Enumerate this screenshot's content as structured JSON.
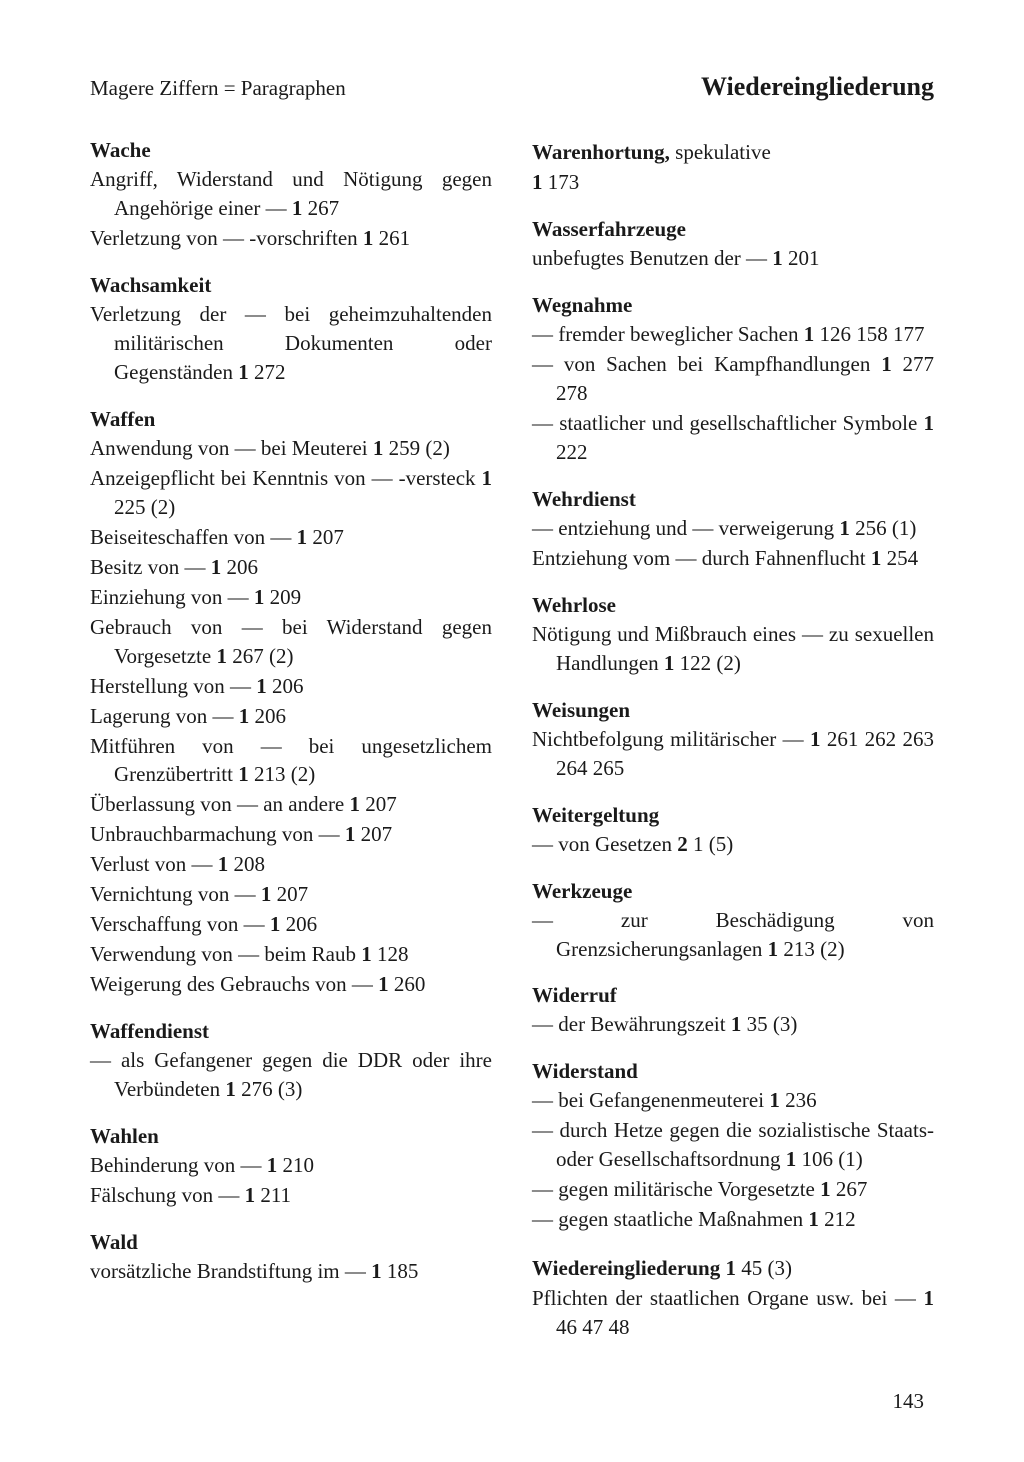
{
  "header": {
    "note": "Magere Ziffern = Paragraphen",
    "title": "Wiedereingliederung"
  },
  "pageNumber": "143",
  "left": [
    {
      "title": "Wache",
      "lines": [
        [
          {
            "t": "Angriff, Widerstand und Nötigung gegen Angehörige einer — "
          },
          {
            "t": "1",
            "b": true
          },
          {
            "t": " 267"
          }
        ],
        [
          {
            "t": "Verletzung von — -vorschriften "
          },
          {
            "t": "1",
            "b": true
          },
          {
            "t": " 261"
          }
        ]
      ]
    },
    {
      "title": "Wachsamkeit",
      "lines": [
        [
          {
            "t": "Verletzung der — bei geheimzuhaltenden militärischen Dokumenten oder Gegenständen "
          },
          {
            "t": "1",
            "b": true
          },
          {
            "t": " 272"
          }
        ]
      ]
    },
    {
      "title": "Waffen",
      "lines": [
        [
          {
            "t": "Anwendung von — bei Meuterei "
          },
          {
            "t": "1",
            "b": true
          },
          {
            "t": " 259 (2)"
          }
        ],
        [
          {
            "t": "Anzeigepflicht bei Kenntnis von — -versteck "
          },
          {
            "t": "1",
            "b": true
          },
          {
            "t": " 225 (2)"
          }
        ],
        [
          {
            "t": "Beiseiteschaffen von — "
          },
          {
            "t": "1",
            "b": true
          },
          {
            "t": " 207"
          }
        ],
        [
          {
            "t": "Besitz von — "
          },
          {
            "t": "1",
            "b": true
          },
          {
            "t": " 206"
          }
        ],
        [
          {
            "t": "Einziehung von — "
          },
          {
            "t": "1",
            "b": true
          },
          {
            "t": " 209"
          }
        ],
        [
          {
            "t": "Gebrauch von — bei Widerstand gegen Vorgesetzte "
          },
          {
            "t": "1",
            "b": true
          },
          {
            "t": " 267 (2)"
          }
        ],
        [
          {
            "t": "Herstellung von — "
          },
          {
            "t": "1",
            "b": true
          },
          {
            "t": " 206"
          }
        ],
        [
          {
            "t": "Lagerung von — "
          },
          {
            "t": "1",
            "b": true
          },
          {
            "t": " 206"
          }
        ],
        [
          {
            "t": "Mitführen von — bei ungesetzlichem Grenzübertritt "
          },
          {
            "t": "1",
            "b": true
          },
          {
            "t": " 213 (2)"
          }
        ],
        [
          {
            "t": "Überlassung von — an andere "
          },
          {
            "t": "1",
            "b": true
          },
          {
            "t": " 207"
          }
        ],
        [
          {
            "t": "Unbrauchbarmachung von — "
          },
          {
            "t": "1",
            "b": true
          },
          {
            "t": " 207"
          }
        ],
        [
          {
            "t": "Verlust von — "
          },
          {
            "t": "1",
            "b": true
          },
          {
            "t": " 208"
          }
        ],
        [
          {
            "t": "Vernichtung von — "
          },
          {
            "t": "1",
            "b": true
          },
          {
            "t": " 207"
          }
        ],
        [
          {
            "t": "Verschaffung von — "
          },
          {
            "t": "1",
            "b": true
          },
          {
            "t": " 206"
          }
        ],
        [
          {
            "t": "Verwendung von — beim Raub "
          },
          {
            "t": "1",
            "b": true
          },
          {
            "t": " 128"
          }
        ],
        [
          {
            "t": "Weigerung des Gebrauchs von — "
          },
          {
            "t": "1",
            "b": true
          },
          {
            "t": " 260"
          }
        ]
      ]
    },
    {
      "title": "Waffendienst",
      "lines": [
        [
          {
            "t": "— als Gefangener gegen die DDR oder ihre Verbündeten "
          },
          {
            "t": "1",
            "b": true
          },
          {
            "t": " 276 (3)"
          }
        ]
      ]
    },
    {
      "title": "Wahlen",
      "lines": [
        [
          {
            "t": "Behinderung von — "
          },
          {
            "t": "1",
            "b": true
          },
          {
            "t": " 210"
          }
        ],
        [
          {
            "t": "Fälschung von — "
          },
          {
            "t": "1",
            "b": true
          },
          {
            "t": " 211"
          }
        ]
      ]
    },
    {
      "title": "Wald",
      "lines": [
        [
          {
            "t": "vorsätzliche Brandstiftung im — "
          },
          {
            "t": "1",
            "b": true
          },
          {
            "t": " 185"
          }
        ]
      ]
    }
  ],
  "right": [
    {
      "titleParts": [
        {
          "t": "Warenhortung,",
          "b": true
        },
        {
          "t": " spekulative"
        }
      ],
      "titleInlineRef": [
        {
          "t": "1",
          "b": true
        },
        {
          "t": " 173"
        }
      ],
      "lines": []
    },
    {
      "title": "Wasserfahrzeuge",
      "lines": [
        [
          {
            "t": "unbefugtes Benutzen der — "
          },
          {
            "t": "1",
            "b": true
          },
          {
            "t": " 201"
          }
        ]
      ]
    },
    {
      "title": "Wegnahme",
      "lines": [
        [
          {
            "t": "— fremder beweglicher Sachen "
          },
          {
            "t": "1",
            "b": true
          },
          {
            "t": " 126 158 177"
          }
        ],
        [
          {
            "t": "— von Sachen bei Kampfhandlungen "
          },
          {
            "t": "1",
            "b": true
          },
          {
            "t": " 277 278"
          }
        ],
        [
          {
            "t": "— staatlicher und gesellschaftlicher Symbole "
          },
          {
            "t": "1",
            "b": true
          },
          {
            "t": " 222"
          }
        ]
      ]
    },
    {
      "title": "Wehrdienst",
      "lines": [
        [
          {
            "t": "— entziehung und — verweigerung "
          },
          {
            "t": "1",
            "b": true
          },
          {
            "t": " 256 (1)"
          }
        ],
        [
          {
            "t": "Entziehung vom — durch Fahnenflucht "
          },
          {
            "t": "1",
            "b": true
          },
          {
            "t": " 254"
          }
        ]
      ]
    },
    {
      "title": "Wehrlose",
      "lines": [
        [
          {
            "t": "Nötigung und Mißbrauch eines — zu sexuellen Handlungen "
          },
          {
            "t": "1",
            "b": true
          },
          {
            "t": " 122 (2)"
          }
        ]
      ]
    },
    {
      "title": "Weisungen",
      "lines": [
        [
          {
            "t": "Nichtbefolgung militärischer — "
          },
          {
            "t": "1",
            "b": true
          },
          {
            "t": " 261 262 263 264 265"
          }
        ]
      ]
    },
    {
      "title": "Weitergeltung",
      "lines": [
        [
          {
            "t": "— von Gesetzen "
          },
          {
            "t": "2",
            "b": true
          },
          {
            "t": " 1 (5)"
          }
        ]
      ]
    },
    {
      "title": "Werkzeuge",
      "lines": [
        [
          {
            "t": "— zur Beschädigung von Grenzsicherungsanlagen "
          },
          {
            "t": "1",
            "b": true
          },
          {
            "t": " 213 (2)"
          }
        ]
      ]
    },
    {
      "title": "Widerruf",
      "lines": [
        [
          {
            "t": "— der Bewährungszeit "
          },
          {
            "t": "1",
            "b": true
          },
          {
            "t": " 35 (3)"
          }
        ]
      ]
    },
    {
      "title": "Widerstand",
      "lines": [
        [
          {
            "t": "— bei Gefangenenmeuterei "
          },
          {
            "t": "1",
            "b": true
          },
          {
            "t": " 236"
          }
        ],
        [
          {
            "t": "— durch Hetze gegen die sozialistische Staats- oder Gesellschaftsordnung "
          },
          {
            "t": "1",
            "b": true
          },
          {
            "t": " 106 (1)"
          }
        ],
        [
          {
            "t": "— gegen militärische Vorgesetzte "
          },
          {
            "t": "1",
            "b": true
          },
          {
            "t": " 267"
          }
        ],
        [
          {
            "t": "— gegen staatliche Maßnahmen "
          },
          {
            "t": "1",
            "b": true
          },
          {
            "t": " 212"
          }
        ]
      ]
    },
    {
      "titleParts": [
        {
          "t": "Wiedereingliederung ",
          "b": true
        },
        {
          "t": "1",
          "b": true
        },
        {
          "t": " 45 (3)"
        }
      ],
      "lines": [
        [
          {
            "t": "Pflichten der staatlichen Organe usw. bei — "
          },
          {
            "t": "1",
            "b": true
          },
          {
            "t": " 46 47 48"
          }
        ]
      ]
    }
  ]
}
